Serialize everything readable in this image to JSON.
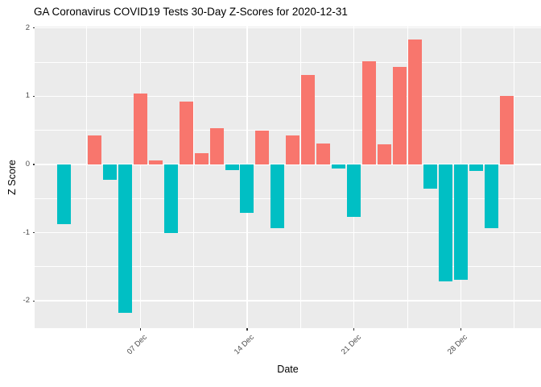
{
  "chart_data": {
    "type": "bar",
    "title": "GA Coronavirus COVID19 Tests 30-Day Z-Scores for 2020-12-31",
    "xlabel": "Date",
    "ylabel": "Z Score",
    "grid": "on",
    "legend": "none",
    "xlim_days": [
      0.08,
      33.25
    ],
    "ylim": [
      -2.4,
      2.02
    ],
    "x_ticks": [
      {
        "day": 7,
        "label": "07 Dec"
      },
      {
        "day": 14,
        "label": "14 Dec"
      },
      {
        "day": 21,
        "label": "21 Dec"
      },
      {
        "day": 28,
        "label": "28 Dec"
      }
    ],
    "x_minor_days": [
      3.5,
      10.5,
      17.5,
      24.5,
      31.5
    ],
    "y_ticks": [
      {
        "z": 2,
        "label": "2"
      },
      {
        "z": 1,
        "label": "1"
      },
      {
        "z": 0,
        "label": "0"
      },
      {
        "z": -1,
        "label": "-1"
      },
      {
        "z": -2,
        "label": "-2"
      }
    ],
    "y_minor": [
      1.5,
      0.5,
      -0.5,
      -1.5
    ],
    "points": [
      {
        "date": "2020-12-02",
        "day": 2,
        "z": -0.87
      },
      {
        "date": "2020-12-04",
        "day": 4,
        "z": 0.42
      },
      {
        "date": "2020-12-05",
        "day": 5,
        "z": -0.23
      },
      {
        "date": "2020-12-06",
        "day": 6,
        "z": -2.18
      },
      {
        "date": "2020-12-07",
        "day": 7,
        "z": 1.04
      },
      {
        "date": "2020-12-08",
        "day": 8,
        "z": 0.06
      },
      {
        "date": "2020-12-09",
        "day": 9,
        "z": -1.0
      },
      {
        "date": "2020-12-10",
        "day": 10,
        "z": 0.92
      },
      {
        "date": "2020-12-11",
        "day": 11,
        "z": 0.16
      },
      {
        "date": "2020-12-12",
        "day": 12,
        "z": 0.53
      },
      {
        "date": "2020-12-13",
        "day": 13,
        "z": -0.08
      },
      {
        "date": "2020-12-14",
        "day": 14,
        "z": -0.71
      },
      {
        "date": "2020-12-15",
        "day": 15,
        "z": 0.49
      },
      {
        "date": "2020-12-16",
        "day": 16,
        "z": -0.93
      },
      {
        "date": "2020-12-17",
        "day": 17,
        "z": 0.43
      },
      {
        "date": "2020-12-18",
        "day": 18,
        "z": 1.31
      },
      {
        "date": "2020-12-19",
        "day": 19,
        "z": 0.31
      },
      {
        "date": "2020-12-20",
        "day": 20,
        "z": -0.06
      },
      {
        "date": "2020-12-21",
        "day": 21,
        "z": -0.77
      },
      {
        "date": "2020-12-22",
        "day": 22,
        "z": 1.51
      },
      {
        "date": "2020-12-23",
        "day": 23,
        "z": 0.29
      },
      {
        "date": "2020-12-24",
        "day": 24,
        "z": 1.43
      },
      {
        "date": "2020-12-25",
        "day": 25,
        "z": 1.83
      },
      {
        "date": "2020-12-26",
        "day": 26,
        "z": -0.36
      },
      {
        "date": "2020-12-27",
        "day": 27,
        "z": -1.71
      },
      {
        "date": "2020-12-28",
        "day": 28,
        "z": -1.69
      },
      {
        "date": "2020-12-29",
        "day": 29,
        "z": -0.09
      },
      {
        "date": "2020-12-30",
        "day": 30,
        "z": -0.93
      },
      {
        "date": "2020-12-31",
        "day": 31,
        "z": 1.0
      }
    ],
    "colors": {
      "positive": "#F8766D",
      "negative": "#00BFC4",
      "panel_bg": "#EBEBEB",
      "grid": "#FFFFFF",
      "tick_label": "#4D4D4D",
      "tick_mark": "#333333",
      "text": "#000000",
      "background": "#FFFFFF"
    }
  }
}
